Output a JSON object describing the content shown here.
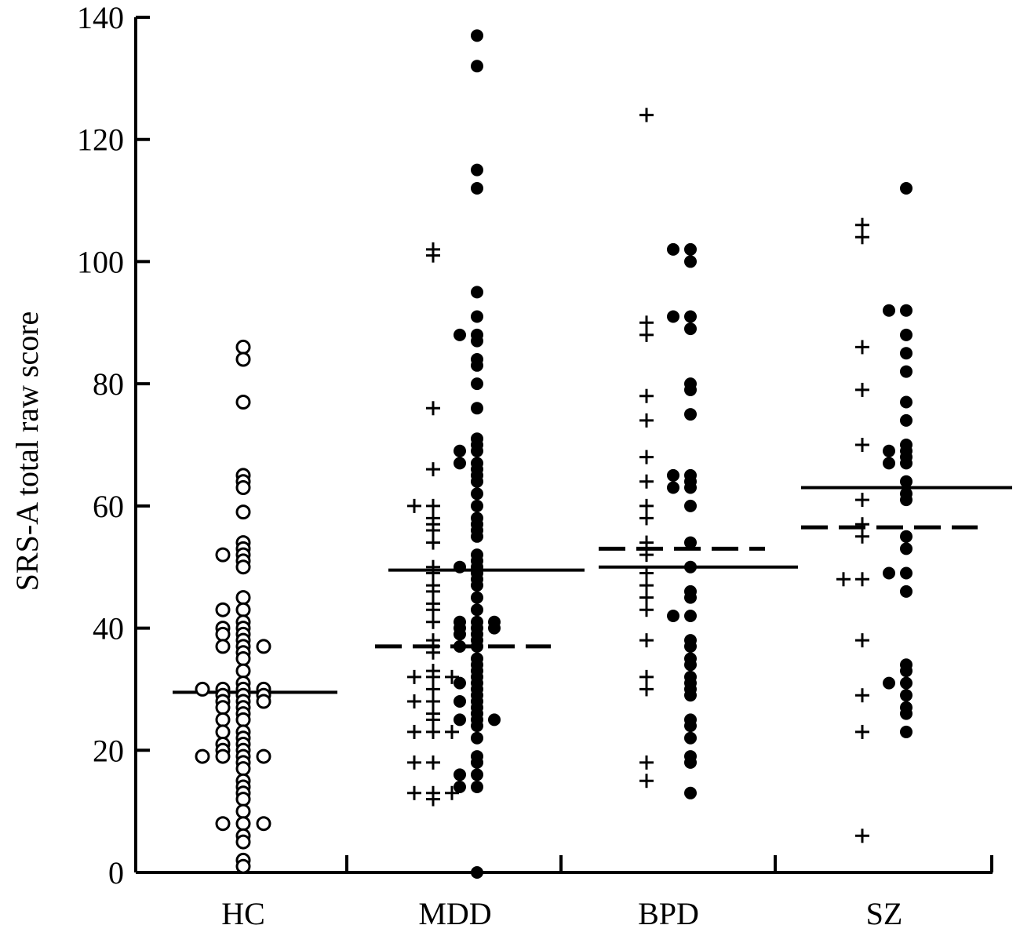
{
  "chart_data": {
    "type": "scatter",
    "title": "",
    "xlabel": "",
    "ylabel": "SRS-A total raw score",
    "ylim": [
      0,
      140
    ],
    "yticks": [
      0,
      20,
      40,
      60,
      80,
      100,
      120,
      140
    ],
    "grid": false,
    "colors": {
      "axis": "#000000",
      "open_marker_fill": "#ffffff",
      "filled_marker": "#000000",
      "plus_marker": "#000000"
    },
    "categories": [
      "HC",
      "MDD",
      "BPD",
      "SZ"
    ],
    "marker_styles": {
      "HC": "open-circle",
      "MDD": "mixed",
      "BPD": "mixed",
      "SZ": "mixed"
    },
    "group_summaries": [
      {
        "category": "HC",
        "solid_line": 29.5,
        "dashed_line": null
      },
      {
        "category": "MDD",
        "solid_line": 49.5,
        "dashed_line": 37
      },
      {
        "category": "BPD",
        "solid_line": 50,
        "dashed_line": 53
      },
      {
        "category": "SZ",
        "solid_line": 63,
        "dashed_line": 56.5
      }
    ],
    "series": [
      {
        "category": "HC",
        "marker": "open-circle",
        "values": [
          86,
          84,
          77,
          65,
          64,
          63,
          59,
          54,
          53,
          52,
          52,
          51,
          50,
          45,
          43,
          43,
          41,
          40,
          40,
          39,
          39,
          38,
          37,
          37,
          37,
          36,
          35,
          33,
          31,
          30,
          30,
          30,
          30,
          29,
          29,
          29,
          28,
          28,
          28,
          27,
          27,
          26,
          25,
          25,
          23,
          23,
          22,
          21,
          21,
          20,
          20,
          19,
          19,
          19,
          19,
          18,
          17,
          15,
          14,
          13,
          12,
          10,
          8,
          8,
          8,
          6,
          5,
          2,
          1
        ]
      },
      {
        "category": "MDD",
        "marker": "filled-circle",
        "values": [
          137,
          132,
          115,
          112,
          95,
          91,
          88,
          88,
          87,
          84,
          83,
          80,
          76,
          71,
          69,
          69,
          70,
          67,
          67,
          66,
          65,
          64,
          62,
          60,
          58,
          57,
          56,
          55,
          52,
          51,
          50,
          50,
          49,
          48,
          47,
          45,
          43,
          41,
          41,
          41,
          40,
          40,
          40,
          39,
          39,
          38,
          37,
          37,
          35,
          34,
          33,
          32,
          31,
          31,
          30,
          29,
          28,
          28,
          27,
          26,
          25,
          25,
          25,
          24,
          22,
          19,
          18,
          16,
          16,
          14,
          14,
          0
        ]
      },
      {
        "category": "MDD",
        "marker": "plus",
        "values": [
          102,
          101,
          76,
          66,
          60,
          60,
          58,
          57,
          56,
          54,
          50,
          49,
          47,
          46,
          44,
          43,
          41,
          38,
          37,
          36,
          33,
          32,
          32,
          32,
          30,
          28,
          28,
          26,
          25,
          23,
          23,
          23,
          18,
          18,
          13,
          13,
          12,
          13
        ]
      },
      {
        "category": "BPD",
        "marker": "filled-circle",
        "values": [
          102,
          102,
          100,
          91,
          91,
          89,
          80,
          79,
          75,
          65,
          65,
          64,
          63,
          63,
          60,
          54,
          50,
          46,
          45,
          42,
          42,
          38,
          37,
          35,
          34,
          32,
          31,
          30,
          29,
          25,
          24,
          22,
          19,
          18,
          13
        ]
      },
      {
        "category": "BPD",
        "marker": "plus",
        "values": [
          124,
          90,
          88,
          78,
          74,
          68,
          64,
          60,
          58,
          54,
          53,
          52,
          49,
          47,
          45,
          43,
          38,
          32,
          30,
          18,
          15
        ]
      },
      {
        "category": "SZ",
        "marker": "filled-circle",
        "values": [
          112,
          92,
          92,
          88,
          85,
          82,
          77,
          74,
          70,
          69,
          69,
          68,
          67,
          67,
          64,
          62,
          61,
          55,
          53,
          49,
          49,
          46,
          34,
          33,
          31,
          31,
          29,
          27,
          26,
          23
        ]
      },
      {
        "category": "SZ",
        "marker": "plus",
        "values": [
          106,
          104,
          86,
          79,
          70,
          61,
          57,
          55,
          48,
          48,
          38,
          29,
          23,
          6
        ]
      }
    ]
  }
}
